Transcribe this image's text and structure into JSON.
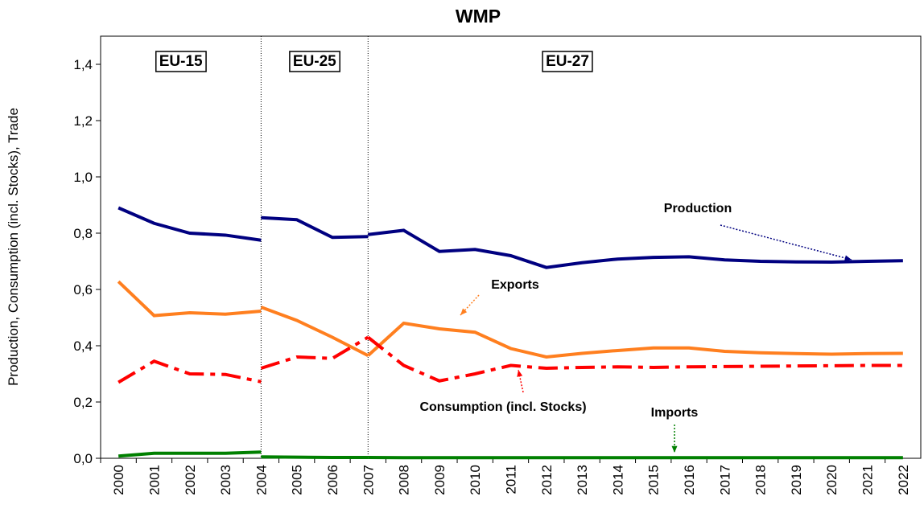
{
  "chart_data": {
    "type": "line",
    "title": "WMP",
    "y_label": "Production, Consumption (incl. Stocks), Trade",
    "categories": [
      "2000",
      "2001",
      "2002",
      "2003",
      "2004",
      "2005",
      "2006",
      "2007",
      "2008",
      "2009",
      "2010",
      "2011",
      "2012",
      "2013",
      "2014",
      "2015",
      "2016",
      "2017",
      "2018",
      "2019",
      "2020",
      "2021",
      "2022"
    ],
    "ylim": [
      0,
      1.5
    ],
    "yticks": [
      {
        "value": 0,
        "label": "0,0"
      },
      {
        "value": 0.2,
        "label": "0,2"
      },
      {
        "value": 0.4,
        "label": "0,4"
      },
      {
        "value": 0.6,
        "label": "0,6"
      },
      {
        "value": 0.8,
        "label": "0,8"
      },
      {
        "value": 1.0,
        "label": "1,0"
      },
      {
        "value": 1.2,
        "label": "1,2"
      },
      {
        "value": 1.4,
        "label": "1,4"
      }
    ],
    "regions": [
      "EU-15",
      "EU-25",
      "EU-27"
    ],
    "dividers": [
      "2004",
      "2007"
    ],
    "series": [
      {
        "name": "Production",
        "color": "#000080",
        "dashed": false,
        "segments": [
          {
            "categories": [
              "2000",
              "2001",
              "2002",
              "2003",
              "2004"
            ],
            "values": [
              0.89,
              0.835,
              0.8,
              0.793,
              0.775
            ]
          },
          {
            "categories": [
              "2004",
              "2005",
              "2006",
              "2007"
            ],
            "values": [
              0.855,
              0.848,
              0.785,
              0.788
            ]
          },
          {
            "categories": [
              "2007",
              "2008",
              "2009",
              "2010",
              "2011",
              "2012",
              "2013",
              "2014",
              "2015",
              "2016",
              "2017",
              "2018",
              "2019",
              "2020",
              "2021",
              "2022"
            ],
            "values": [
              0.795,
              0.81,
              0.735,
              0.742,
              0.72,
              0.678,
              0.695,
              0.708,
              0.714,
              0.716,
              0.705,
              0.7,
              0.698,
              0.697,
              0.7,
              0.702
            ]
          }
        ]
      },
      {
        "name": "Exports",
        "color": "#ff7f1f",
        "dashed": false,
        "segments": [
          {
            "categories": [
              "2000",
              "2001",
              "2002",
              "2003",
              "2004"
            ],
            "values": [
              0.628,
              0.507,
              0.517,
              0.512,
              0.523
            ]
          },
          {
            "categories": [
              "2004",
              "2005",
              "2006",
              "2007"
            ],
            "values": [
              0.537,
              0.49,
              0.43,
              0.365
            ]
          },
          {
            "categories": [
              "2007",
              "2008",
              "2009",
              "2010",
              "2011",
              "2012",
              "2013",
              "2014",
              "2015",
              "2016",
              "2017",
              "2018",
              "2019",
              "2020",
              "2021",
              "2022"
            ],
            "values": [
              0.365,
              0.48,
              0.46,
              0.448,
              0.39,
              0.36,
              0.373,
              0.383,
              0.392,
              0.392,
              0.38,
              0.375,
              0.372,
              0.37,
              0.372,
              0.373
            ]
          }
        ]
      },
      {
        "name": "Consumption (incl. Stocks)",
        "color": "#ff0000",
        "dashed": true,
        "segments": [
          {
            "categories": [
              "2000",
              "2001",
              "2002",
              "2003",
              "2004"
            ],
            "values": [
              0.27,
              0.345,
              0.3,
              0.298,
              0.272
            ]
          },
          {
            "categories": [
              "2004",
              "2005",
              "2006",
              "2007"
            ],
            "values": [
              0.32,
              0.36,
              0.355,
              0.43
            ]
          },
          {
            "categories": [
              "2007",
              "2008",
              "2009",
              "2010",
              "2011",
              "2012",
              "2013",
              "2014",
              "2015",
              "2016",
              "2017",
              "2018",
              "2019",
              "2020",
              "2021",
              "2022"
            ],
            "values": [
              0.43,
              0.33,
              0.275,
              0.3,
              0.33,
              0.32,
              0.323,
              0.325,
              0.323,
              0.325,
              0.326,
              0.327,
              0.328,
              0.329,
              0.33,
              0.33
            ]
          }
        ]
      },
      {
        "name": "Imports",
        "color": "#008000",
        "dashed": false,
        "segments": [
          {
            "categories": [
              "2000",
              "2001",
              "2002",
              "2003",
              "2004"
            ],
            "values": [
              0.008,
              0.018,
              0.018,
              0.018,
              0.022
            ]
          },
          {
            "categories": [
              "2004",
              "2005",
              "2006",
              "2007"
            ],
            "values": [
              0.005,
              0.004,
              0.003,
              0.003
            ]
          },
          {
            "categories": [
              "2007",
              "2008",
              "2009",
              "2010",
              "2011",
              "2012",
              "2013",
              "2014",
              "2015",
              "2016",
              "2017",
              "2018",
              "2019",
              "2020",
              "2021",
              "2022"
            ],
            "values": [
              0.003,
              0.002,
              0.002,
              0.002,
              0.002,
              0.002,
              0.002,
              0.002,
              0.002,
              0.002,
              0.002,
              0.002,
              0.002,
              0.002,
              0.002,
              0.002
            ]
          }
        ]
      }
    ]
  }
}
